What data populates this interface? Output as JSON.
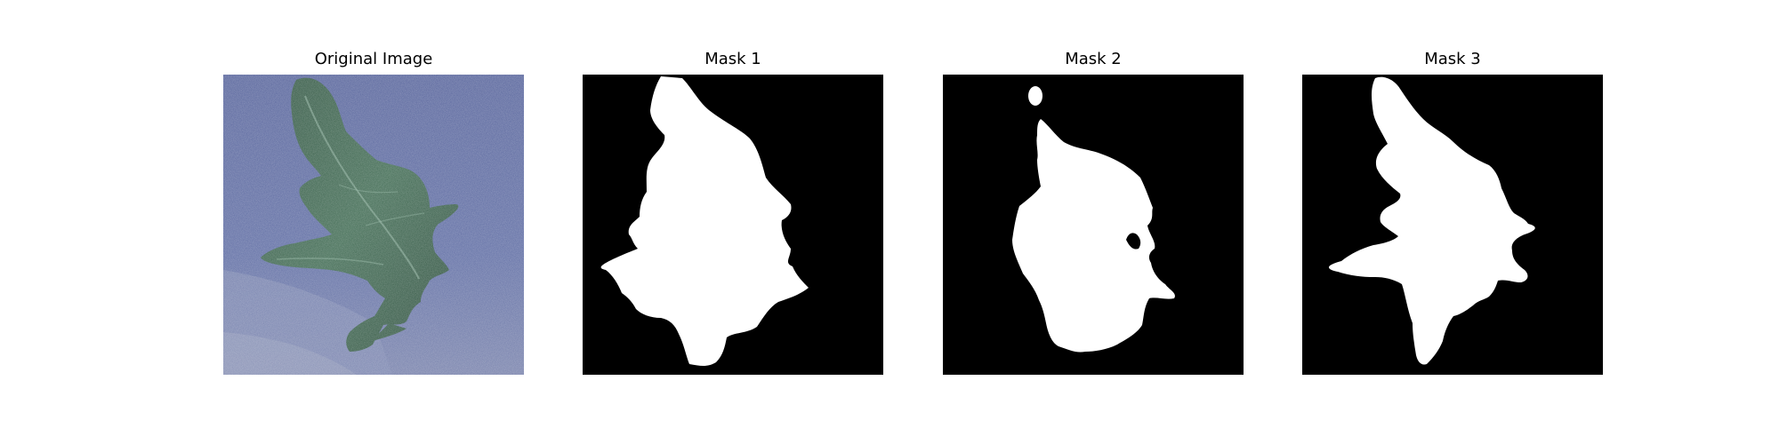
{
  "figure": {
    "background": "#ffffff",
    "panels": [
      {
        "id": "original",
        "title": "Original Image",
        "content": "leaf-photo"
      },
      {
        "id": "mask1",
        "title": "Mask 1",
        "content": "binary-mask",
        "foreground": "#ffffff",
        "background": "#000000"
      },
      {
        "id": "mask2",
        "title": "Mask 2",
        "content": "binary-mask",
        "foreground": "#ffffff",
        "background": "#000000"
      },
      {
        "id": "mask3",
        "title": "Mask 3",
        "content": "binary-mask",
        "foreground": "#ffffff",
        "background": "#000000"
      }
    ]
  },
  "colors": {
    "photo_background": "#5a6aa0",
    "photo_floor": "#7a86ad",
    "leaf_dark": "#2f4f3d",
    "leaf_light": "#4d7560",
    "mask_foreground": "#ffffff",
    "mask_background": "#000000"
  }
}
